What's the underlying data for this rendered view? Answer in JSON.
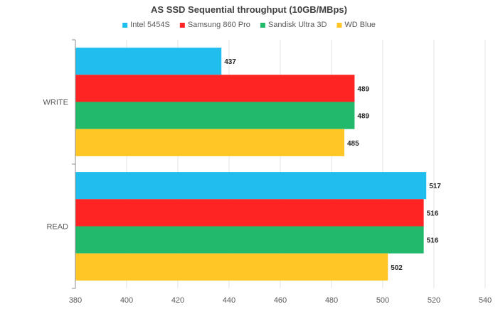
{
  "chart_data": {
    "type": "bar",
    "orientation": "horizontal",
    "title": "AS SSD Sequential throughput (10GB/MBps)",
    "xlabel": "",
    "ylabel": "",
    "xlim": [
      380,
      540
    ],
    "ticks": [
      380,
      400,
      420,
      440,
      460,
      480,
      500,
      520,
      540
    ],
    "grid": true,
    "legend_position": "top",
    "categories": [
      "WRITE",
      "READ"
    ],
    "series": [
      {
        "name": "Intel 5454S",
        "color": "#22bdef",
        "values": [
          437,
          517
        ]
      },
      {
        "name": "Samsung 860 Pro",
        "color": "#ff2424",
        "values": [
          489,
          516
        ]
      },
      {
        "name": "Sandisk Ultra 3D",
        "color": "#22b96a",
        "values": [
          489,
          516
        ]
      },
      {
        "name": "WD Blue",
        "color": "#ffc625",
        "values": [
          485,
          502
        ]
      }
    ]
  }
}
